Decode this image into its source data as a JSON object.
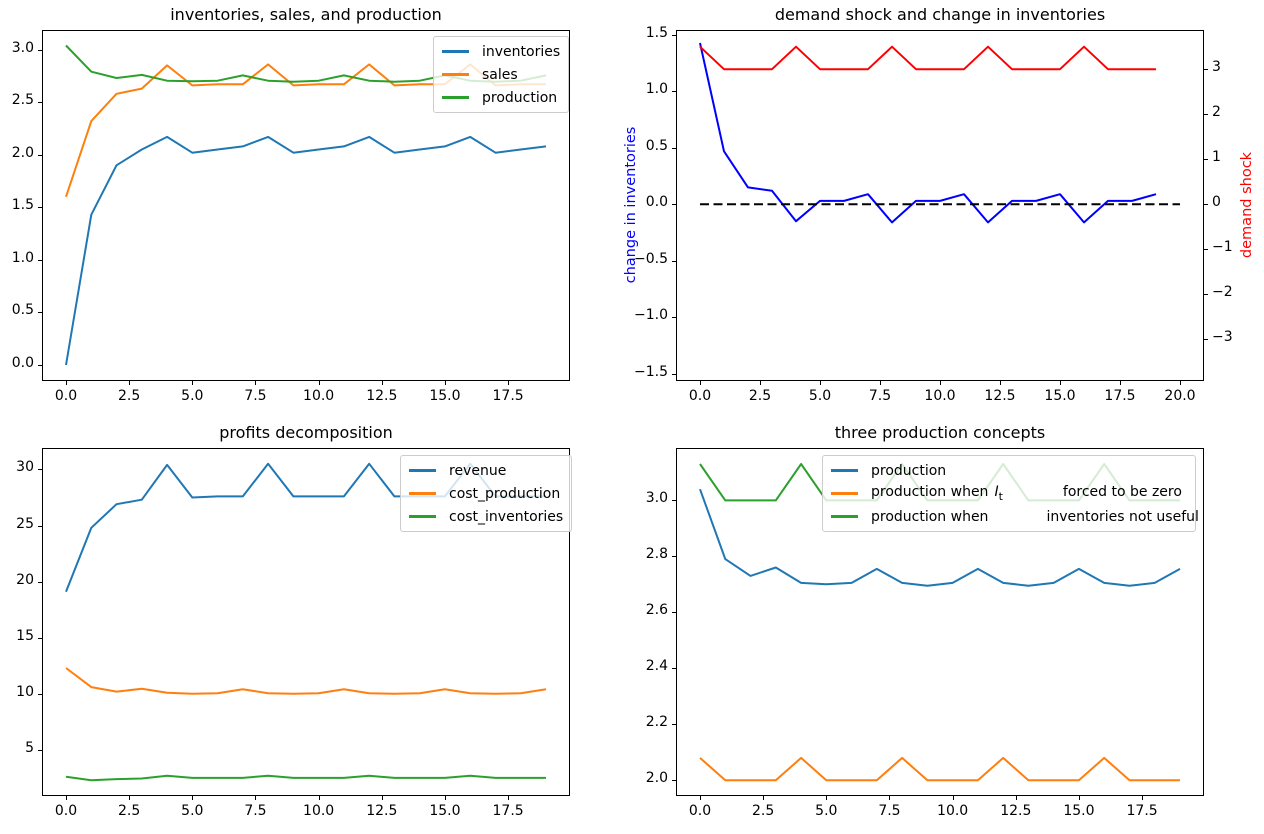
{
  "figure": {
    "background": "#ffffff",
    "text_color": "#000000",
    "spine_color": "#000000",
    "legend_border_color": "#cccccc"
  },
  "palette": {
    "mpl_blue": "#1f77b4",
    "mpl_orange": "#ff7f0e",
    "mpl_green": "#2ca02c",
    "pure_blue": "#0000ff",
    "pure_red": "#ff0000",
    "black": "#000000"
  },
  "chart_data": [
    {
      "id": "inventories-sales-production",
      "type": "line",
      "title": "inventories, sales, and production",
      "x": [
        0,
        1,
        2,
        3,
        4,
        5,
        6,
        7,
        8,
        9,
        10,
        11,
        12,
        13,
        14,
        15,
        16,
        17,
        18,
        19
      ],
      "xlim": [
        -0.95,
        19.95
      ],
      "ylim": [
        -0.152,
        3.187
      ],
      "grid": false,
      "xticks": {
        "values": [
          0,
          2.5,
          5,
          7.5,
          10,
          12.5,
          15,
          17.5
        ],
        "labels": [
          "0.0",
          "2.5",
          "5.0",
          "7.5",
          "10.0",
          "12.5",
          "15.0",
          "17.5"
        ]
      },
      "yticks": {
        "values": [
          0,
          0.5,
          1,
          1.5,
          2,
          2.5,
          3
        ],
        "labels": [
          "0.0",
          "0.5",
          "1.0",
          "1.5",
          "2.0",
          "2.5",
          "3.0"
        ]
      },
      "legend": {
        "position": "upper right",
        "entries": [
          {
            "color": "#1f77b4",
            "parts": [
              {
                "text": "inventories"
              }
            ]
          },
          {
            "color": "#ff7f0e",
            "parts": [
              {
                "text": "sales"
              }
            ]
          },
          {
            "color": "#2ca02c",
            "parts": [
              {
                "text": "production"
              }
            ]
          }
        ]
      },
      "series": [
        {
          "name": "inventories",
          "color": "#1f77b4",
          "values": [
            0.0,
            1.43,
            1.9,
            2.05,
            2.17,
            2.02,
            2.05,
            2.08,
            2.17,
            2.02,
            2.05,
            2.08,
            2.17,
            2.02,
            2.05,
            2.08,
            2.17,
            2.02,
            2.05,
            2.08
          ]
        },
        {
          "name": "sales",
          "color": "#ff7f0e",
          "values": [
            1.6,
            2.32,
            2.58,
            2.63,
            2.85,
            2.66,
            2.67,
            2.67,
            2.86,
            2.66,
            2.67,
            2.67,
            2.86,
            2.66,
            2.67,
            2.67,
            2.86,
            2.66,
            2.67,
            2.67
          ]
        },
        {
          "name": "production",
          "color": "#2ca02c",
          "values": [
            3.04,
            2.79,
            2.73,
            2.76,
            2.705,
            2.7,
            2.705,
            2.755,
            2.705,
            2.695,
            2.705,
            2.755,
            2.705,
            2.695,
            2.705,
            2.755,
            2.705,
            2.695,
            2.705,
            2.755
          ]
        }
      ]
    },
    {
      "id": "demand-shock-and-change-in-inventories",
      "type": "line",
      "title": "demand shock and change in inventories",
      "x": [
        0,
        1,
        2,
        3,
        4,
        5,
        6,
        7,
        8,
        9,
        10,
        11,
        12,
        13,
        14,
        15,
        16,
        17,
        18,
        19
      ],
      "xlim": [
        -1,
        21
      ],
      "ylim": [
        -1.566,
        1.545
      ],
      "ylim_right": [
        -3.93,
        3.87
      ],
      "grid": false,
      "xticks": {
        "values": [
          0,
          2.5,
          5,
          7.5,
          10,
          12.5,
          15,
          17.5,
          20
        ],
        "labels": [
          "0.0",
          "2.5",
          "5.0",
          "7.5",
          "10.0",
          "12.5",
          "15.0",
          "17.5",
          "20.0"
        ]
      },
      "yticks": {
        "values": [
          -1.5,
          -1,
          -0.5,
          0,
          0.5,
          1,
          1.5
        ],
        "labels": [
          "−1.5",
          "−1.0",
          "−0.5",
          "0.0",
          "0.5",
          "1.0",
          "1.5"
        ]
      },
      "yticks_right": {
        "values": [
          -3,
          -2,
          -1,
          0,
          1,
          2,
          3
        ],
        "labels": [
          "−3",
          "−2",
          "−1",
          "0",
          "1",
          "2",
          "3"
        ]
      },
      "ylabel_left": {
        "text": "change in inventories",
        "color": "#0000ff"
      },
      "ylabel_right": {
        "text": "demand shock",
        "color": "#ff0000"
      },
      "series": [
        {
          "name": "change-in-inventories",
          "color": "#0000ff",
          "values": [
            1.43,
            0.47,
            0.15,
            0.12,
            -0.15,
            0.03,
            0.03,
            0.09,
            -0.16,
            0.03,
            0.03,
            0.09,
            -0.16,
            0.03,
            0.03,
            0.09,
            -0.16,
            0.03,
            0.03,
            0.09
          ]
        },
        {
          "name": "zero-reference-line",
          "color": "#000000",
          "dash": true,
          "x": [
            0,
            20
          ],
          "values": [
            0,
            0
          ]
        },
        {
          "name": "demand-shock",
          "color": "#ff0000",
          "axis": "right",
          "values": [
            3.5,
            3,
            3,
            3,
            3.5,
            3,
            3,
            3,
            3.5,
            3,
            3,
            3,
            3.5,
            3,
            3,
            3,
            3.5,
            3,
            3,
            3
          ]
        }
      ]
    },
    {
      "id": "profits-decomposition",
      "type": "line",
      "title": "profits decomposition",
      "x": [
        0,
        1,
        2,
        3,
        4,
        5,
        6,
        7,
        8,
        9,
        10,
        11,
        12,
        13,
        14,
        15,
        16,
        17,
        18,
        19
      ],
      "xlim": [
        -0.95,
        19.95
      ],
      "ylim": [
        0.89,
        31.91
      ],
      "grid": false,
      "xticks": {
        "values": [
          0,
          2.5,
          5,
          7.5,
          10,
          12.5,
          15,
          17.5
        ],
        "labels": [
          "0.0",
          "2.5",
          "5.0",
          "7.5",
          "10.0",
          "12.5",
          "15.0",
          "17.5"
        ]
      },
      "yticks": {
        "values": [
          5,
          10,
          15,
          20,
          25,
          30
        ],
        "labels": [
          "5",
          "10",
          "15",
          "20",
          "25",
          "30"
        ]
      },
      "legend": {
        "position": "upper right",
        "entries": [
          {
            "color": "#1f77b4",
            "parts": [
              {
                "text": "revenue"
              }
            ]
          },
          {
            "color": "#ff7f0e",
            "parts": [
              {
                "text": "cost_production"
              }
            ]
          },
          {
            "color": "#2ca02c",
            "parts": [
              {
                "text": "cost_inventories"
              }
            ]
          }
        ]
      },
      "series": [
        {
          "name": "revenue",
          "color": "#1f77b4",
          "values": [
            19.1,
            24.8,
            26.9,
            27.3,
            30.4,
            27.5,
            27.6,
            27.6,
            30.5,
            27.6,
            27.6,
            27.6,
            30.5,
            27.6,
            27.6,
            27.6,
            30.5,
            27.6,
            27.6,
            27.6
          ]
        },
        {
          "name": "cost_production",
          "color": "#ff7f0e",
          "values": [
            12.3,
            10.6,
            10.2,
            10.45,
            10.1,
            10.0,
            10.05,
            10.4,
            10.05,
            10.0,
            10.05,
            10.4,
            10.05,
            10.0,
            10.05,
            10.4,
            10.05,
            10.0,
            10.05,
            10.4
          ]
        },
        {
          "name": "cost_inventories",
          "color": "#2ca02c",
          "values": [
            2.6,
            2.3,
            2.4,
            2.45,
            2.7,
            2.5,
            2.5,
            2.5,
            2.7,
            2.5,
            2.5,
            2.5,
            2.7,
            2.5,
            2.5,
            2.5,
            2.7,
            2.5,
            2.5,
            2.5
          ]
        }
      ]
    },
    {
      "id": "three-production-concepts",
      "type": "line",
      "title": "three production concepts",
      "x": [
        0,
        1,
        2,
        3,
        4,
        5,
        6,
        7,
        8,
        9,
        10,
        11,
        12,
        13,
        14,
        15,
        16,
        17,
        18,
        19
      ],
      "xlim": [
        -0.95,
        19.95
      ],
      "ylim": [
        1.944,
        3.187
      ],
      "grid": false,
      "xticks": {
        "values": [
          0,
          2.5,
          5,
          7.5,
          10,
          12.5,
          15,
          17.5
        ],
        "labels": [
          "0.0",
          "2.5",
          "5.0",
          "7.5",
          "10.0",
          "12.5",
          "15.0",
          "17.5"
        ]
      },
      "yticks": {
        "values": [
          2.0,
          2.2,
          2.4,
          2.6,
          2.8,
          3.0
        ],
        "labels": [
          "2.0",
          "2.2",
          "2.4",
          "2.6",
          "2.8",
          "3.0"
        ]
      },
      "legend": {
        "position": "upper center",
        "entries": [
          {
            "color": "#1f77b4",
            "parts": [
              {
                "text": "production"
              }
            ]
          },
          {
            "color": "#ff7f0e",
            "parts": [
              {
                "text": "production when"
              },
              {
                "math_var": "I",
                "math_sub": "t"
              },
              {
                "gap": 60
              },
              {
                "text": "forced to be zero"
              }
            ]
          },
          {
            "color": "#2ca02c",
            "parts": [
              {
                "text": "production when"
              },
              {
                "gap": 58
              },
              {
                "text": "inventories not useful"
              }
            ]
          }
        ]
      },
      "series": [
        {
          "name": "production",
          "color": "#1f77b4",
          "values": [
            3.04,
            2.79,
            2.73,
            2.76,
            2.705,
            2.7,
            2.705,
            2.755,
            2.705,
            2.695,
            2.705,
            2.755,
            2.705,
            2.695,
            2.705,
            2.755,
            2.705,
            2.695,
            2.705,
            2.755
          ]
        },
        {
          "name": "production-when-It-forced-to-be-zero",
          "color": "#ff7f0e",
          "values": [
            2.08,
            2.0,
            2.0,
            2.0,
            2.08,
            2.0,
            2.0,
            2.0,
            2.08,
            2.0,
            2.0,
            2.0,
            2.08,
            2.0,
            2.0,
            2.0,
            2.08,
            2.0,
            2.0,
            2.0
          ]
        },
        {
          "name": "production-when-inventories-not-useful",
          "color": "#2ca02c",
          "values": [
            3.13,
            3.0,
            3.0,
            3.0,
            3.13,
            3.0,
            3.0,
            3.0,
            3.13,
            3.0,
            3.0,
            3.0,
            3.13,
            3.0,
            3.0,
            3.0,
            3.13,
            3.0,
            3.0,
            3.0
          ]
        }
      ]
    }
  ]
}
